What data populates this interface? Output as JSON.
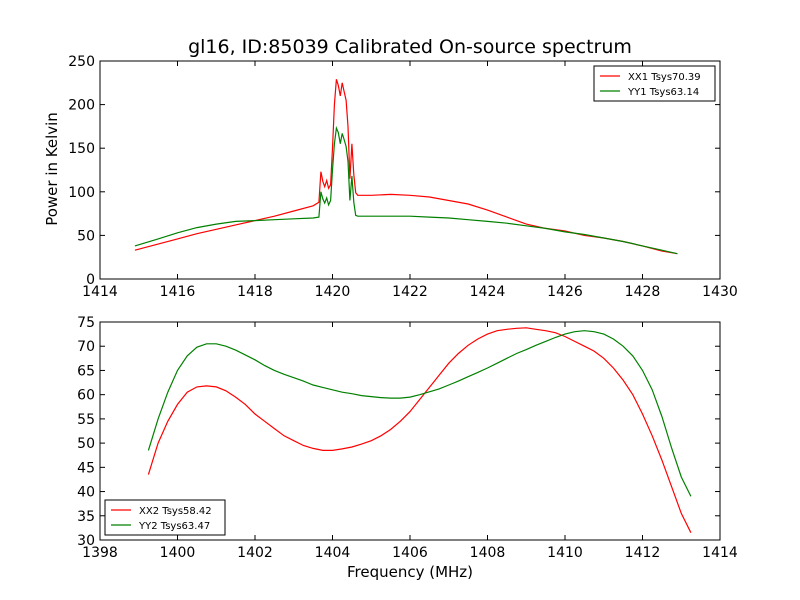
{
  "chart_data": [
    {
      "type": "line",
      "title": "gl16, ID:85039 Calibrated On-source spectrum",
      "xlabel": "",
      "ylabel": "Power in Kelvin",
      "xlim": [
        1414,
        1430
      ],
      "ylim": [
        0,
        250
      ],
      "xticks": [
        "1414",
        "1416",
        "1418",
        "1420",
        "1422",
        "1424",
        "1426",
        "1428",
        "1430"
      ],
      "yticks": [
        "0",
        "50",
        "100",
        "150",
        "200",
        "250"
      ],
      "grid": false,
      "legend": "top-right",
      "series": [
        {
          "name": "XX1 Tsys70.39",
          "color": "#ff0000",
          "x": [
            1414.9,
            1415.5,
            1416.0,
            1416.5,
            1417.0,
            1417.5,
            1418.0,
            1418.5,
            1419.0,
            1419.5,
            1419.65,
            1419.7,
            1419.75,
            1419.8,
            1419.85,
            1419.9,
            1419.95,
            1420.0,
            1420.05,
            1420.1,
            1420.15,
            1420.2,
            1420.25,
            1420.3,
            1420.35,
            1420.4,
            1420.45,
            1420.5,
            1420.55,
            1420.6,
            1420.65,
            1420.7,
            1421.0,
            1421.5,
            1422.0,
            1422.5,
            1423.0,
            1423.5,
            1424.0,
            1424.5,
            1425.0,
            1425.5,
            1426.0,
            1426.5,
            1427.0,
            1427.5,
            1428.0,
            1428.5,
            1428.9
          ],
          "values": [
            33,
            40,
            46,
            52,
            57,
            62,
            67,
            72,
            78,
            84,
            88,
            123,
            112,
            106,
            113,
            104,
            108,
            150,
            200,
            229,
            222,
            210,
            225,
            215,
            205,
            175,
            115,
            155,
            120,
            99,
            96,
            96,
            96,
            97,
            96,
            94,
            90,
            86,
            79,
            71,
            63,
            58,
            55,
            50,
            47,
            43,
            38,
            32,
            29
          ]
        },
        {
          "name": "YY1 Tsys63.14",
          "color": "#008000",
          "x": [
            1414.9,
            1415.5,
            1416.0,
            1416.5,
            1417.0,
            1417.5,
            1418.0,
            1418.5,
            1419.0,
            1419.5,
            1419.65,
            1419.7,
            1419.75,
            1419.8,
            1419.85,
            1419.9,
            1419.95,
            1420.0,
            1420.05,
            1420.1,
            1420.15,
            1420.2,
            1420.25,
            1420.3,
            1420.35,
            1420.4,
            1420.45,
            1420.5,
            1420.55,
            1420.6,
            1420.65,
            1420.7,
            1421.0,
            1421.5,
            1422.0,
            1422.5,
            1423.0,
            1423.5,
            1424.0,
            1424.5,
            1425.0,
            1425.5,
            1426.0,
            1426.5,
            1427.0,
            1427.5,
            1428.0,
            1428.5,
            1428.9
          ],
          "values": [
            38,
            46,
            53,
            59,
            63,
            66,
            67,
            68,
            69,
            70,
            71,
            100,
            92,
            87,
            93,
            85,
            90,
            125,
            155,
            173,
            168,
            155,
            167,
            160,
            152,
            135,
            90,
            118,
            88,
            73,
            72,
            72,
            72,
            72,
            72,
            71,
            70,
            68,
            66,
            64,
            61,
            58,
            54,
            51,
            47,
            43,
            38,
            33,
            29
          ]
        }
      ]
    },
    {
      "type": "line",
      "title": "",
      "xlabel": "Frequency (MHz)",
      "ylabel": "",
      "xlim": [
        1398,
        1414
      ],
      "ylim": [
        30,
        75
      ],
      "xticks": [
        "1398",
        "1400",
        "1402",
        "1404",
        "1406",
        "1408",
        "1410",
        "1412",
        "1414"
      ],
      "yticks": [
        "30",
        "35",
        "40",
        "45",
        "50",
        "55",
        "60",
        "65",
        "70",
        "75"
      ],
      "grid": false,
      "legend": "bottom-left",
      "series": [
        {
          "name": "XX2 Tsys58.42",
          "color": "#ff0000",
          "x": [
            1399.25,
            1399.5,
            1399.75,
            1400.0,
            1400.25,
            1400.5,
            1400.75,
            1401.0,
            1401.25,
            1401.5,
            1401.75,
            1402.0,
            1402.25,
            1402.5,
            1402.75,
            1403.0,
            1403.25,
            1403.5,
            1403.75,
            1404.0,
            1404.25,
            1404.5,
            1404.75,
            1405.0,
            1405.25,
            1405.5,
            1405.75,
            1406.0,
            1406.25,
            1406.5,
            1406.75,
            1407.0,
            1407.25,
            1407.5,
            1407.75,
            1408.0,
            1408.25,
            1408.5,
            1408.75,
            1409.0,
            1409.25,
            1409.5,
            1409.75,
            1410.0,
            1410.25,
            1410.5,
            1410.75,
            1411.0,
            1411.25,
            1411.5,
            1411.75,
            1412.0,
            1412.25,
            1412.5,
            1412.75,
            1413.0,
            1413.25
          ],
          "values": [
            43.5,
            50,
            54.5,
            58,
            60.5,
            61.6,
            61.8,
            61.6,
            60.8,
            59.5,
            58,
            56,
            54.5,
            53,
            51.5,
            50.5,
            49.5,
            48.9,
            48.5,
            48.5,
            48.8,
            49.2,
            49.8,
            50.5,
            51.5,
            52.8,
            54.5,
            56.5,
            59,
            61.5,
            64,
            66.5,
            68.5,
            70.2,
            71.5,
            72.5,
            73.2,
            73.5,
            73.7,
            73.8,
            73.5,
            73.2,
            72.8,
            72,
            71,
            70,
            69,
            67.5,
            65.5,
            63,
            60,
            56,
            51.5,
            46.5,
            41,
            35.5,
            31.5
          ]
        },
        {
          "name": "YY2 Tsys63.47",
          "color": "#008000",
          "x": [
            1399.25,
            1399.5,
            1399.75,
            1400.0,
            1400.25,
            1400.5,
            1400.75,
            1401.0,
            1401.25,
            1401.5,
            1401.75,
            1402.0,
            1402.25,
            1402.5,
            1402.75,
            1403.0,
            1403.25,
            1403.5,
            1403.75,
            1404.0,
            1404.25,
            1404.5,
            1404.75,
            1405.0,
            1405.25,
            1405.5,
            1405.75,
            1406.0,
            1406.25,
            1406.5,
            1406.75,
            1407.0,
            1407.25,
            1407.5,
            1407.75,
            1408.0,
            1408.25,
            1408.5,
            1408.75,
            1409.0,
            1409.25,
            1409.5,
            1409.75,
            1410.0,
            1410.25,
            1410.5,
            1410.75,
            1411.0,
            1411.25,
            1411.5,
            1411.75,
            1412.0,
            1412.25,
            1412.5,
            1412.75,
            1413.0,
            1413.25
          ],
          "values": [
            48.5,
            55,
            60.5,
            65,
            68,
            69.8,
            70.5,
            70.5,
            70,
            69.2,
            68.2,
            67.2,
            66,
            65,
            64.2,
            63.5,
            62.8,
            62,
            61.5,
            61,
            60.5,
            60.2,
            59.8,
            59.6,
            59.4,
            59.3,
            59.3,
            59.5,
            60,
            60.6,
            61.2,
            62,
            62.8,
            63.7,
            64.6,
            65.5,
            66.5,
            67.5,
            68.5,
            69.3,
            70.2,
            71,
            71.8,
            72.5,
            73,
            73.2,
            73,
            72.5,
            71.5,
            70,
            68,
            65,
            61,
            55.5,
            49,
            43,
            39
          ]
        }
      ]
    }
  ]
}
